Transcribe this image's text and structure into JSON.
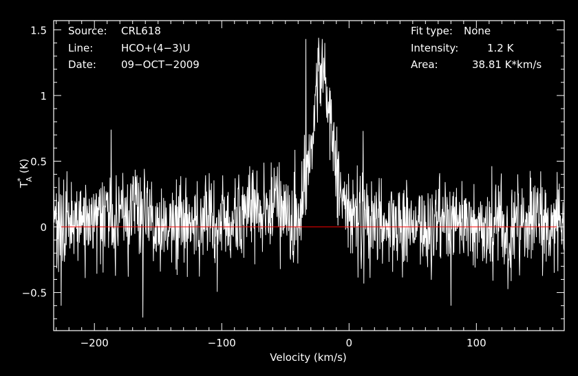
{
  "chart_data": {
    "type": "line",
    "xlabel": "Velocity (km/s)",
    "ylabel": "T",
    "ylabel_sup": "*",
    "ylabel_sub": "A",
    "ylabel_unit": " (K)",
    "xlim": [
      -232,
      169
    ],
    "ylim": [
      -0.79,
      1.57
    ],
    "xticks": [
      -200,
      -100,
      0,
      100
    ],
    "xtick_labels": [
      "−200",
      "−100",
      "0",
      "100"
    ],
    "yticks": [
      -0.5,
      0,
      0.5,
      1,
      1.5
    ],
    "ytick_labels": [
      "−0.5",
      "0",
      "0.5",
      "1",
      "1.5"
    ],
    "baseline": 0,
    "baseline_color": "#ff0000",
    "line_color": "#ffffff",
    "background": "#000000",
    "grid": false,
    "info_left": [
      {
        "key": "Source:",
        "value": "CRL618"
      },
      {
        "key": "Line:",
        "value": "HCO+(4−3)U"
      },
      {
        "key": "Date:",
        "value": "09−OCT−2009"
      }
    ],
    "info_right": [
      {
        "key": "Fit type:",
        "value": "None"
      },
      {
        "key": "Intensity:",
        "value": "1.2 K"
      },
      {
        "key": "Area:",
        "value": "38.81 K*km/s"
      }
    ],
    "series": [
      {
        "noise_rms": 0.17,
        "components": [
          {
            "profile": "bump",
            "center": -210,
            "half_width": 45,
            "amplitude": 0.07
          },
          {
            "profile": "bump",
            "center": -170,
            "half_width": 40,
            "amplitude": 0.09
          },
          {
            "profile": "bump",
            "center": -125,
            "half_width": 55,
            "amplitude": 0.03
          },
          {
            "profile": "bump",
            "center": -65,
            "half_width": 40,
            "amplitude": 0.16
          },
          {
            "profile": "gaussian",
            "center": -22,
            "sigma": 7,
            "amplitude": 1.03
          },
          {
            "profile": "gaussian",
            "center": -9,
            "sigma": 10,
            "amplitude": 0.18
          },
          {
            "profile": "bump",
            "center": 20,
            "half_width": 60,
            "amplitude": 0.03
          },
          {
            "profile": "bump",
            "center": 150,
            "half_width": 40,
            "amplitude": 0.03
          }
        ],
        "key_points": [
          {
            "x": -226,
            "y": -0.6
          },
          {
            "x": -162,
            "y": -0.69
          },
          {
            "x": -187,
            "y": 0.74
          },
          {
            "x": -35,
            "y": 0.7
          },
          {
            "x": -34,
            "y": 1.43
          },
          {
            "x": -24,
            "y": 1.44
          },
          {
            "x": -21,
            "y": 1.43
          },
          {
            "x": -19,
            "y": 1.4
          },
          {
            "x": 11,
            "y": 0.73
          },
          {
            "x": 80,
            "y": -0.6
          }
        ],
        "channel_count": 1400
      }
    ]
  }
}
